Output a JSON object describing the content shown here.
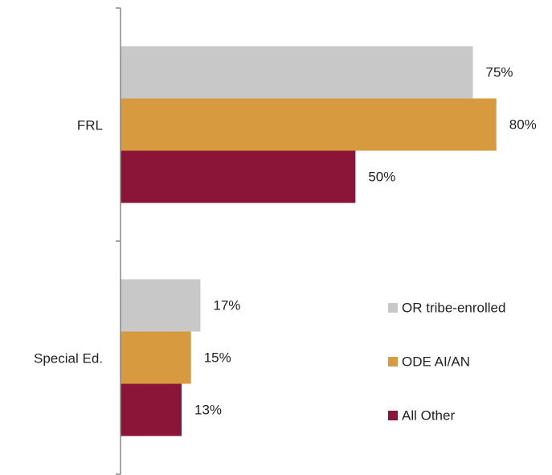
{
  "chart_data": {
    "type": "barh",
    "categories": [
      "FRL",
      "Special Ed."
    ],
    "series": [
      {
        "name": "OR tribe-enrolled",
        "color": "#c8c8c8",
        "values": [
          75,
          17
        ],
        "value_labels": [
          "75%",
          "17%"
        ]
      },
      {
        "name": "ODE AI/AN",
        "color": "#d89a3e",
        "values": [
          80,
          15
        ],
        "value_labels": [
          "80%",
          "15%"
        ]
      },
      {
        "name": "All Other",
        "color": "#8a1538",
        "values": [
          50,
          13
        ],
        "value_labels": [
          "50%",
          "13%"
        ]
      }
    ],
    "xlim": [
      0,
      85
    ],
    "legend": "lower right"
  }
}
